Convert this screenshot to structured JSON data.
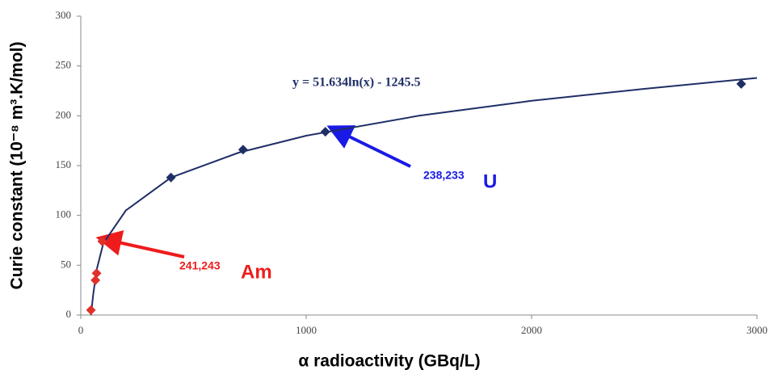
{
  "chart_data": {
    "type": "scatter",
    "x_label": "α radioactivity (GBq/L)",
    "y_label": "Curie constant (10⁻⁸ m³.K/mol)",
    "xlim": [
      0,
      3000
    ],
    "xticks": [
      0,
      1000,
      2000,
      3000
    ],
    "ylim": [
      0,
      300
    ],
    "yticks": [
      0,
      50,
      100,
      150,
      200,
      250,
      300
    ],
    "grid": false,
    "series": [
      {
        "color": "#1f2f66",
        "x": [
          400,
          720,
          1085,
          2930
        ],
        "values": [
          138,
          166,
          184,
          232
        ]
      },
      {
        "color": "#e0302a",
        "x": [
          45,
          65,
          70,
          95
        ],
        "values": [
          5,
          35,
          42,
          74
        ]
      }
    ],
    "trendline": {
      "color": "#1f2f66",
      "x": [
        45,
        55,
        70,
        100,
        200,
        400,
        700,
        1000,
        1500,
        2000,
        2500,
        3000
      ],
      "values": [
        0,
        20,
        45,
        72,
        105,
        138,
        163,
        180,
        200,
        215,
        227,
        238
      ]
    },
    "annotations": [
      {
        "text": "y = 51.634ln(x) - 1245.5"
      },
      {
        "superscript": "238,233",
        "text": "U",
        "color": "#1a1ae6"
      },
      {
        "superscript": "241,243",
        "text": "Am",
        "color": "#ee1c1c"
      }
    ]
  }
}
